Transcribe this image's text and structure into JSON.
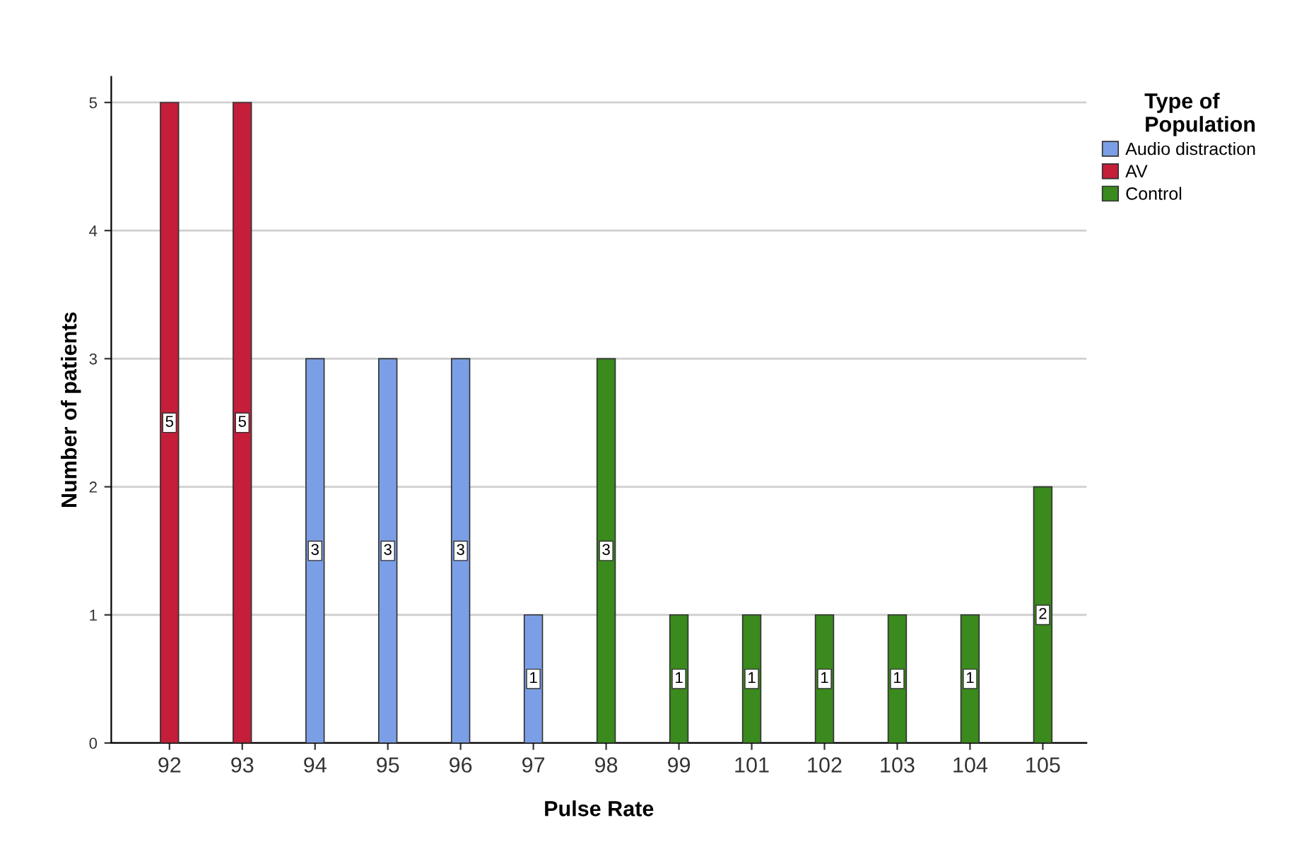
{
  "chart_data": {
    "type": "bar",
    "xlabel": "Pulse Rate",
    "ylabel": "Number of patients",
    "legend_title": "Type of\nPopulation",
    "categories": [
      "92",
      "93",
      "94",
      "95",
      "96",
      "97",
      "98",
      "99",
      "101",
      "102",
      "103",
      "104",
      "105"
    ],
    "series": [
      {
        "name": "Audio distraction",
        "color": "#7b9fe6",
        "values": [
          null,
          null,
          3,
          3,
          3,
          1,
          null,
          null,
          null,
          null,
          null,
          null,
          null
        ]
      },
      {
        "name": "AV",
        "color": "#c41e3a",
        "values": [
          5,
          5,
          null,
          null,
          null,
          null,
          null,
          null,
          null,
          null,
          null,
          null,
          null
        ]
      },
      {
        "name": "Control",
        "color": "#3a8a1e",
        "values": [
          null,
          null,
          null,
          null,
          null,
          null,
          3,
          1,
          1,
          1,
          1,
          1,
          2
        ]
      }
    ],
    "ylim": [
      0,
      5.2
    ],
    "yticks": [
      0,
      1,
      2,
      3,
      4,
      5
    ],
    "grid": "y",
    "legend": "top right",
    "data_labels": true
  }
}
